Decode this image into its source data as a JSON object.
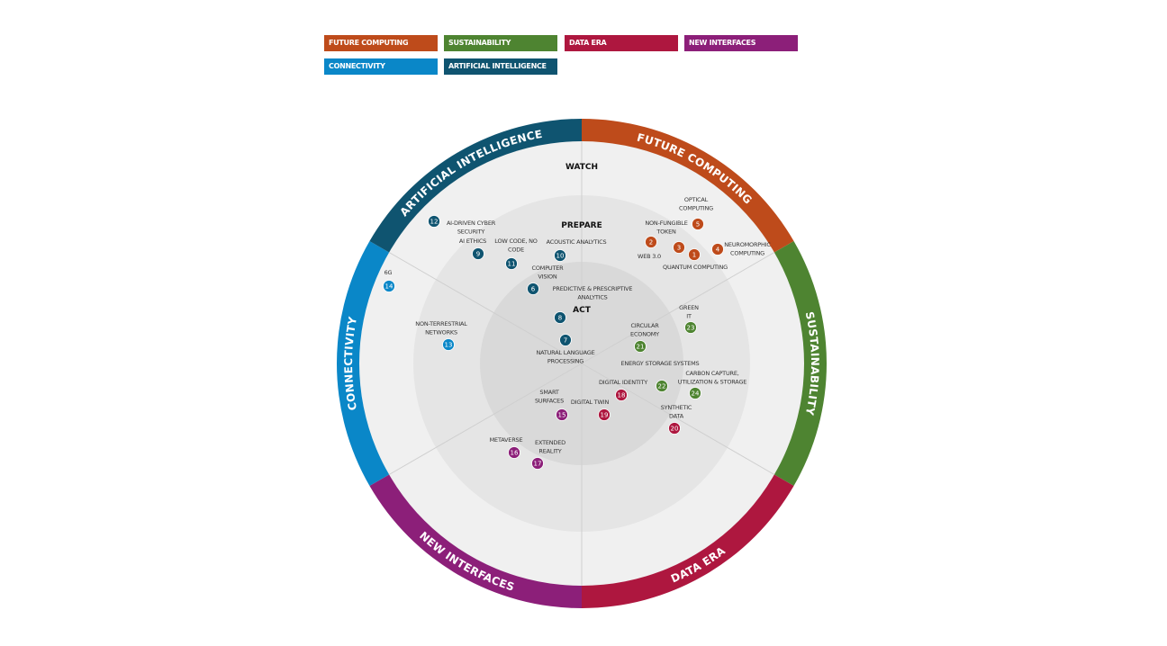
{
  "legend": [
    {
      "key": "future_computing",
      "label": "FUTURE COMPUTING",
      "color": "#BE4B1B"
    },
    {
      "key": "sustainability",
      "label": "SUSTAINABILITY",
      "color": "#4E8431"
    },
    {
      "key": "data_era",
      "label": "DATA ERA",
      "color": "#AE173F"
    },
    {
      "key": "new_interfaces",
      "label": "NEW INTERFACES",
      "color": "#8C1F79"
    },
    {
      "key": "connectivity",
      "label": "CONNECTIVITY",
      "color": "#0A87C8"
    },
    {
      "key": "artificial_intelligence",
      "label": "ARTIFICIAL INTELLIGENCE",
      "color": "#0F5470"
    }
  ],
  "rings": {
    "watch": "WATCH",
    "prepare": "PREPARE",
    "act": "ACT"
  },
  "sectors": {
    "future_computing": "FUTURE COMPUTING",
    "sustainability": "SUSTAINABILITY",
    "data_era": "DATA ERA",
    "new_interfaces": "NEW INTERFACES",
    "connectivity": "CONNECTIVITY",
    "artificial_intelligence": "ARTIFICIAL INTELLIGENCE"
  },
  "technologies": [
    {
      "id": 1,
      "label": [
        "QUANTUM COMPUTING"
      ],
      "sector": "future_computing",
      "ring": "prepare"
    },
    {
      "id": 2,
      "label": [
        "WEB 3.0"
      ],
      "sector": "future_computing",
      "ring": "prepare"
    },
    {
      "id": 3,
      "label": [
        "NON-FUNGIBLE",
        "TOKEN"
      ],
      "sector": "future_computing",
      "ring": "prepare"
    },
    {
      "id": 4,
      "label": [
        "NEUROMORPHIC",
        "COMPUTING"
      ],
      "sector": "future_computing",
      "ring": "watch"
    },
    {
      "id": 5,
      "label": [
        "OPTICAL",
        "COMPUTING"
      ],
      "sector": "future_computing",
      "ring": "watch"
    },
    {
      "id": 6,
      "label": [
        "COMPUTER",
        "VISION"
      ],
      "sector": "artificial_intelligence",
      "ring": "act"
    },
    {
      "id": 7,
      "label": [
        "NATURAL LANGUAGE",
        "PROCESSING"
      ],
      "sector": "artificial_intelligence",
      "ring": "act"
    },
    {
      "id": 8,
      "label": [
        "PREDICTIVE & PRESCRIPTIVE",
        "ANALYTICS"
      ],
      "sector": "artificial_intelligence",
      "ring": "act"
    },
    {
      "id": 9,
      "label": [
        "AI ETHICS"
      ],
      "sector": "artificial_intelligence",
      "ring": "prepare"
    },
    {
      "id": 10,
      "label": [
        "ACOUSTIC ANALYTICS"
      ],
      "sector": "artificial_intelligence",
      "ring": "prepare"
    },
    {
      "id": 11,
      "label": [
        "LOW CODE, NO",
        "CODE"
      ],
      "sector": "artificial_intelligence",
      "ring": "prepare"
    },
    {
      "id": 12,
      "label": [
        "AI-DRIVEN CYBER",
        "SECURITY"
      ],
      "sector": "artificial_intelligence",
      "ring": "watch"
    },
    {
      "id": 13,
      "label": [
        "NON-TERRESTRIAL",
        "NETWORKS"
      ],
      "sector": "connectivity",
      "ring": "prepare"
    },
    {
      "id": 14,
      "label": [
        "6G"
      ],
      "sector": "connectivity",
      "ring": "watch"
    },
    {
      "id": 15,
      "label": [
        "SMART",
        "SURFACES"
      ],
      "sector": "new_interfaces",
      "ring": "act"
    },
    {
      "id": 16,
      "label": [
        "METAVERSE"
      ],
      "sector": "new_interfaces",
      "ring": "prepare"
    },
    {
      "id": 17,
      "label": [
        "EXTENDED",
        "REALITY"
      ],
      "sector": "new_interfaces",
      "ring": "prepare"
    },
    {
      "id": 18,
      "label": [
        "DIGITAL IDENTITY"
      ],
      "sector": "data_era",
      "ring": "act"
    },
    {
      "id": 19,
      "label": [
        "DIGITAL TWIN"
      ],
      "sector": "data_era",
      "ring": "act"
    },
    {
      "id": 20,
      "label": [
        "SYNTHETIC",
        "DATA"
      ],
      "sector": "data_era",
      "ring": "prepare"
    },
    {
      "id": 21,
      "label": [
        "CIRCULAR",
        "ECONOMY"
      ],
      "sector": "sustainability",
      "ring": "act"
    },
    {
      "id": 22,
      "label": [
        "ENERGY STORAGE SYSTEMS"
      ],
      "sector": "sustainability",
      "ring": "prepare"
    },
    {
      "id": 23,
      "label": [
        "GREEN",
        "IT"
      ],
      "sector": "sustainability",
      "ring": "prepare"
    },
    {
      "id": 24,
      "label": [
        "CARBON CAPTURE,",
        "UTILIZATION & STORAGE"
      ],
      "sector": "sustainability",
      "ring": "prepare"
    }
  ]
}
